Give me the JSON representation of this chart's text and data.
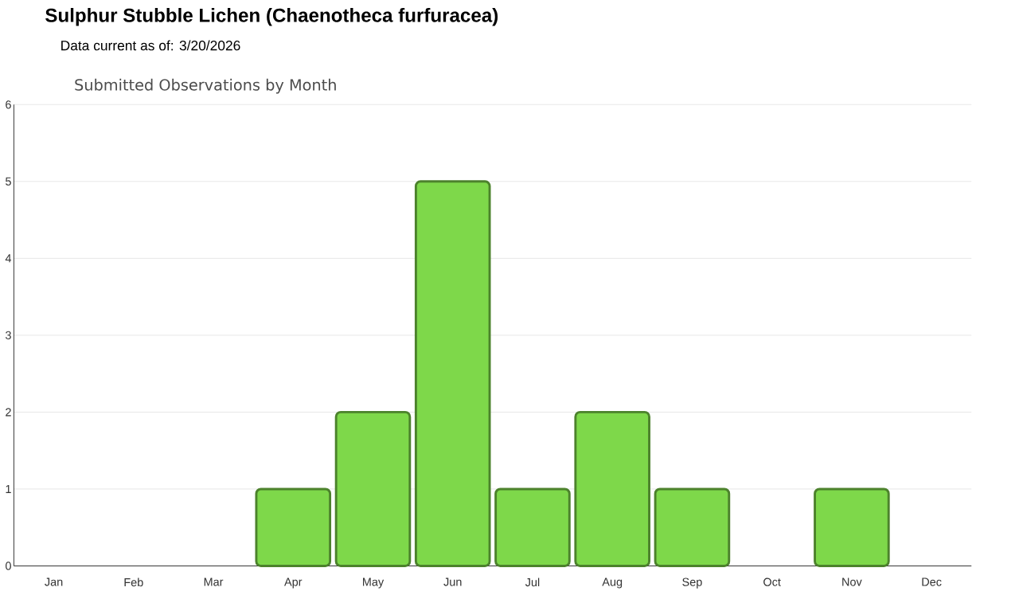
{
  "chart_data": {
    "type": "bar",
    "title": "Sulphur Stubble Lichen   (Chaenotheca furfuracea)",
    "subtitle": "Data current as of: 3/20/2026",
    "annotations": [
      "Submitted Observations by Month"
    ],
    "categories": [
      "Jan",
      "Feb",
      "Mar",
      "Apr",
      "May",
      "Jun",
      "Jul",
      "Aug",
      "Sep",
      "Oct",
      "Nov",
      "Dec"
    ],
    "values": [
      0,
      0,
      0,
      1,
      2,
      5,
      1,
      2,
      1,
      0,
      1,
      0
    ],
    "color": "#7ed84a",
    "ylim": [
      0,
      6
    ],
    "yticks": [
      0,
      1,
      2,
      3,
      4,
      5,
      6
    ],
    "grid": "y"
  }
}
